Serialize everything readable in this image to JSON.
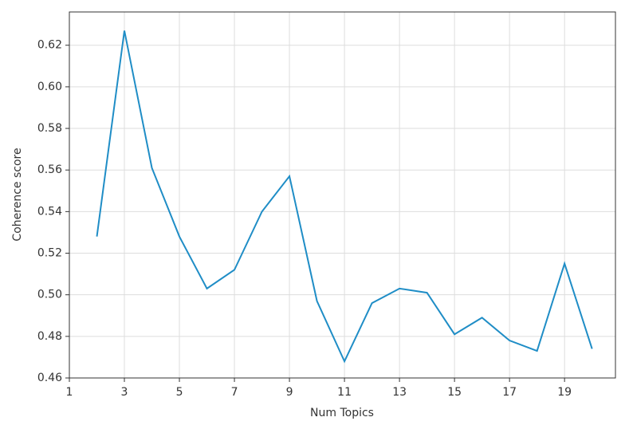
{
  "chart_data": {
    "type": "line",
    "xlabel": "Num Topics",
    "ylabel": "Coherence score",
    "x": [
      2,
      3,
      4,
      5,
      6,
      7,
      8,
      9,
      10,
      11,
      12,
      13,
      14,
      15,
      16,
      17,
      18,
      19,
      20
    ],
    "series": [
      {
        "name": "Coherence",
        "color": "#1f8dc6",
        "values": [
          0.528,
          0.627,
          0.561,
          0.528,
          0.503,
          0.512,
          0.54,
          0.557,
          0.497,
          0.468,
          0.496,
          0.503,
          0.501,
          0.481,
          0.489,
          0.478,
          0.473,
          0.515,
          0.474
        ]
      }
    ],
    "xlim": [
      1,
      20.85
    ],
    "xticks": [
      1,
      3,
      5,
      7,
      9,
      11,
      13,
      15,
      17,
      19
    ],
    "ylim": [
      0.46,
      0.636
    ],
    "yticks": [
      {
        "value": 0.46,
        "label": "0.46"
      },
      {
        "value": 0.48,
        "label": "0.48"
      },
      {
        "value": 0.5,
        "label": "0.50"
      },
      {
        "value": 0.52,
        "label": "0.52"
      },
      {
        "value": 0.54,
        "label": "0.54"
      },
      {
        "value": 0.56,
        "label": "0.56"
      },
      {
        "value": 0.58,
        "label": "0.58"
      },
      {
        "value": 0.6,
        "label": "0.60"
      },
      {
        "value": 0.62,
        "label": "0.62"
      }
    ],
    "grid": true
  }
}
